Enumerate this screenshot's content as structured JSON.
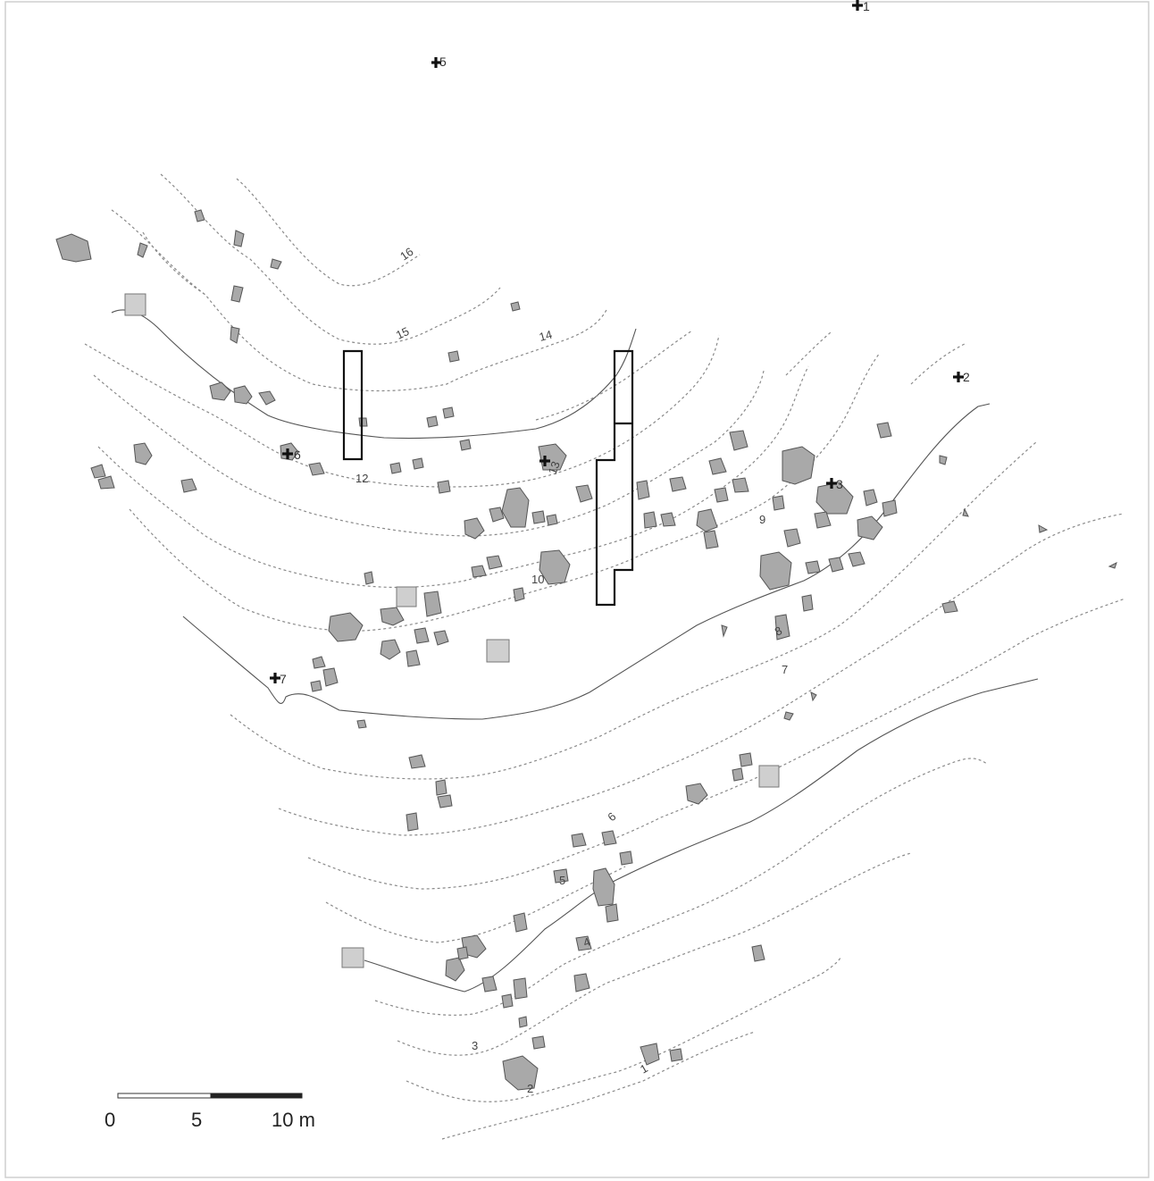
{
  "map": {
    "stone_color": "#a9a9a9",
    "marker_color": "#cfcfcf",
    "contour_labels": {
      "c16": "16",
      "c15": "15",
      "c14": "14",
      "c13": "13",
      "c12": "12",
      "c10": "10",
      "c9": "9",
      "c8": "8",
      "c7": "7",
      "c6": "6",
      "c5": "5",
      "c4": "4",
      "c3": "3",
      "c2": "2",
      "c1": "1"
    },
    "survey_points": {
      "p1": "1",
      "p2": "2",
      "p3": "3",
      "p5": "5",
      "p6": "6",
      "p7": "7"
    },
    "scale": {
      "tick0": "0",
      "tick5": "5",
      "tick10": "10 m"
    }
  }
}
